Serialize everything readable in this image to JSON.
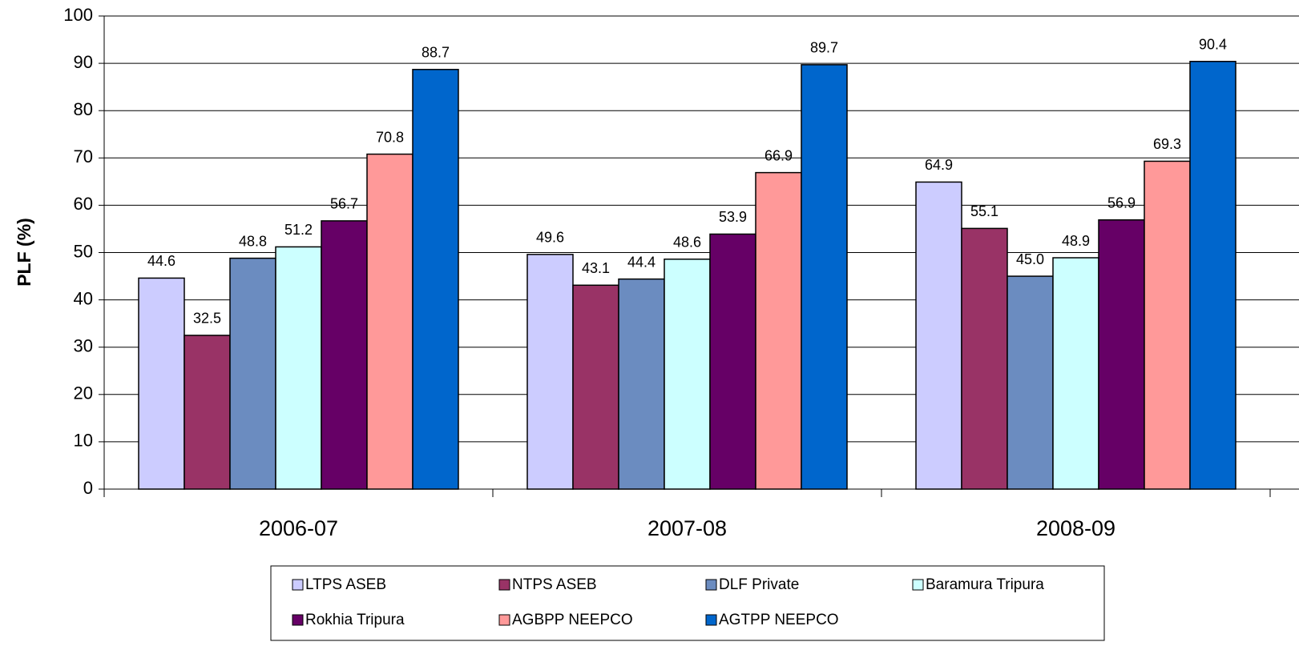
{
  "chart_data": {
    "type": "bar",
    "y_label": "PLF (%)",
    "categories": [
      "2006-07",
      "2007-08",
      "2008-09"
    ],
    "series": [
      {
        "name": "LTPS ASEB",
        "color": "#ccccff",
        "values": [
          44.6,
          49.6,
          64.9
        ]
      },
      {
        "name": "NTPS ASEB",
        "color": "#993366",
        "values": [
          32.5,
          43.1,
          55.1
        ]
      },
      {
        "name": "DLF Private",
        "color": "#6b8cc0",
        "values": [
          48.8,
          44.4,
          45
        ],
        "value_labels": [
          "48.8",
          "44.4",
          "45.0"
        ]
      },
      {
        "name": "Baramura Tripura",
        "color": "#ccffff",
        "values": [
          51.2,
          48.6,
          48.9
        ]
      },
      {
        "name": "Rokhia Tripura",
        "color": "#660066",
        "values": [
          56.7,
          53.9,
          56.9
        ]
      },
      {
        "name": "AGBPP NEEPCO",
        "color": "#ff9999",
        "values": [
          70.8,
          66.9,
          69.3
        ]
      },
      {
        "name": "AGTPP NEEPCO",
        "color": "#0066cc",
        "values": [
          88.7,
          89.7,
          90.4
        ]
      }
    ],
    "ylim": [
      0,
      100
    ],
    "yticks": [
      0,
      10,
      20,
      30,
      40,
      50,
      60,
      70,
      80,
      90,
      100
    ],
    "grid": true
  }
}
